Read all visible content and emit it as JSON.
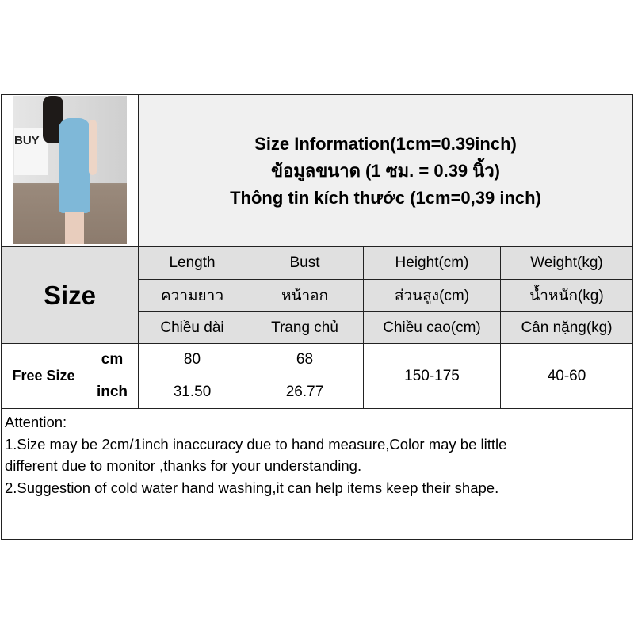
{
  "header": {
    "title_en": "Size Information(1cm=0.39inch)",
    "title_th": "ข้อมูลขนาด (1 ซม. = 0.39 นิ้ว)",
    "title_vi": "Thông tin kích thước (1cm=0,39 inch)"
  },
  "photo": {
    "bag_text": "BUY"
  },
  "table": {
    "size_label": "Size",
    "columns": [
      {
        "en": "Length",
        "th": "ความยาว",
        "vi": "Chiều dài"
      },
      {
        "en": "Bust",
        "th": "หน้าอก",
        "vi": "Trang chủ"
      },
      {
        "en": "Height(cm)",
        "th": "ส่วนสูง(cm)",
        "vi": "Chiều cao(cm)"
      },
      {
        "en": "Weight(kg)",
        "th": "น้ำหนัก(kg)",
        "vi": "Cân nặng(kg)"
      }
    ],
    "row_label": "Free Size",
    "units": [
      "cm",
      "inch"
    ],
    "length": [
      "80",
      "31.50"
    ],
    "bust": [
      "68",
      "26.77"
    ],
    "height": "150-175",
    "weight": "40-60"
  },
  "attention": {
    "lines": [
      "Attention:",
      "1.Size may be 2cm/1inch inaccuracy due to hand measure,Color may be little",
      "different due to monitor ,thanks for your understanding.",
      "2.Suggestion of cold water hand washing,it can help items keep their shape."
    ]
  }
}
